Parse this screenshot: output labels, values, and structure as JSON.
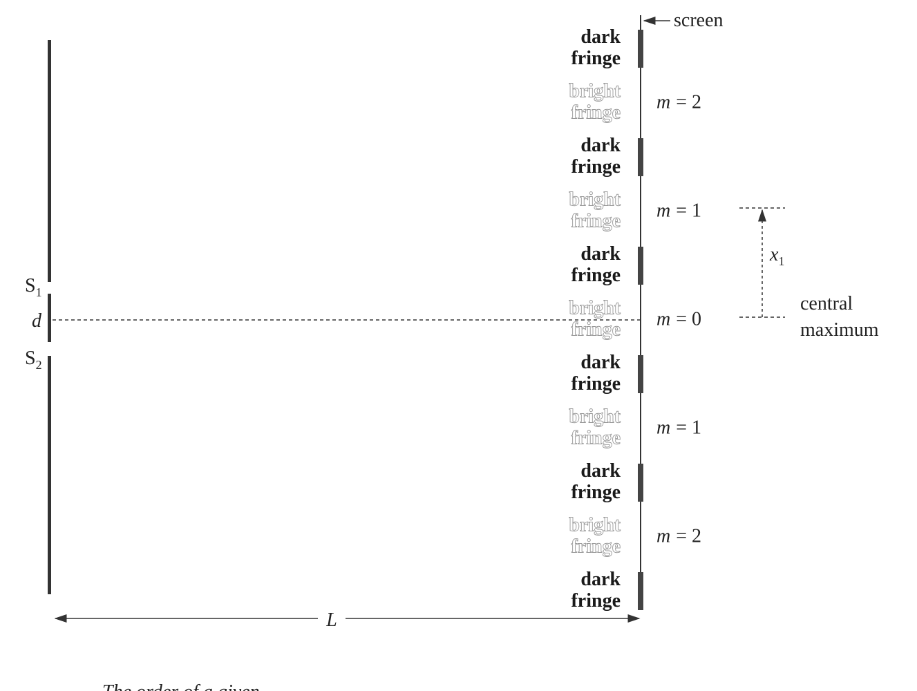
{
  "screen_label": "screen",
  "slit_labels": [
    {
      "letter": "S",
      "sub": "1"
    },
    {
      "letter": "S",
      "sub": "2"
    }
  ],
  "separation_label": "d",
  "distance_label": "L",
  "offset_label": {
    "letter": "x",
    "sub": "1"
  },
  "central_label": [
    "central",
    "maximum"
  ],
  "fringes": [
    {
      "kind": "dark",
      "lines": [
        "dark",
        "fringe"
      ]
    },
    {
      "kind": "bright",
      "lines": [
        "bright",
        "fringe"
      ]
    },
    {
      "kind": "dark",
      "lines": [
        "dark",
        "fringe"
      ]
    },
    {
      "kind": "bright",
      "lines": [
        "bright",
        "fringe"
      ]
    },
    {
      "kind": "dark",
      "lines": [
        "dark",
        "fringe"
      ]
    },
    {
      "kind": "bright",
      "lines": [
        "bright",
        "fringe"
      ]
    },
    {
      "kind": "dark",
      "lines": [
        "dark",
        "fringe"
      ]
    },
    {
      "kind": "bright",
      "lines": [
        "bright",
        "fringe"
      ]
    },
    {
      "kind": "dark",
      "lines": [
        "dark",
        "fringe"
      ]
    },
    {
      "kind": "bright",
      "lines": [
        "bright",
        "fringe"
      ]
    },
    {
      "kind": "dark",
      "lines": [
        "dark",
        "fringe"
      ]
    }
  ],
  "order_labels": [
    {
      "symbol": "m",
      "rest": "= 2"
    },
    {
      "symbol": "m",
      "rest": "= 1"
    },
    {
      "symbol": "m",
      "rest": "= 0"
    },
    {
      "symbol": "m",
      "rest": "= 1"
    },
    {
      "symbol": "m",
      "rest": "= 2"
    }
  ],
  "caption": "The order of a given"
}
